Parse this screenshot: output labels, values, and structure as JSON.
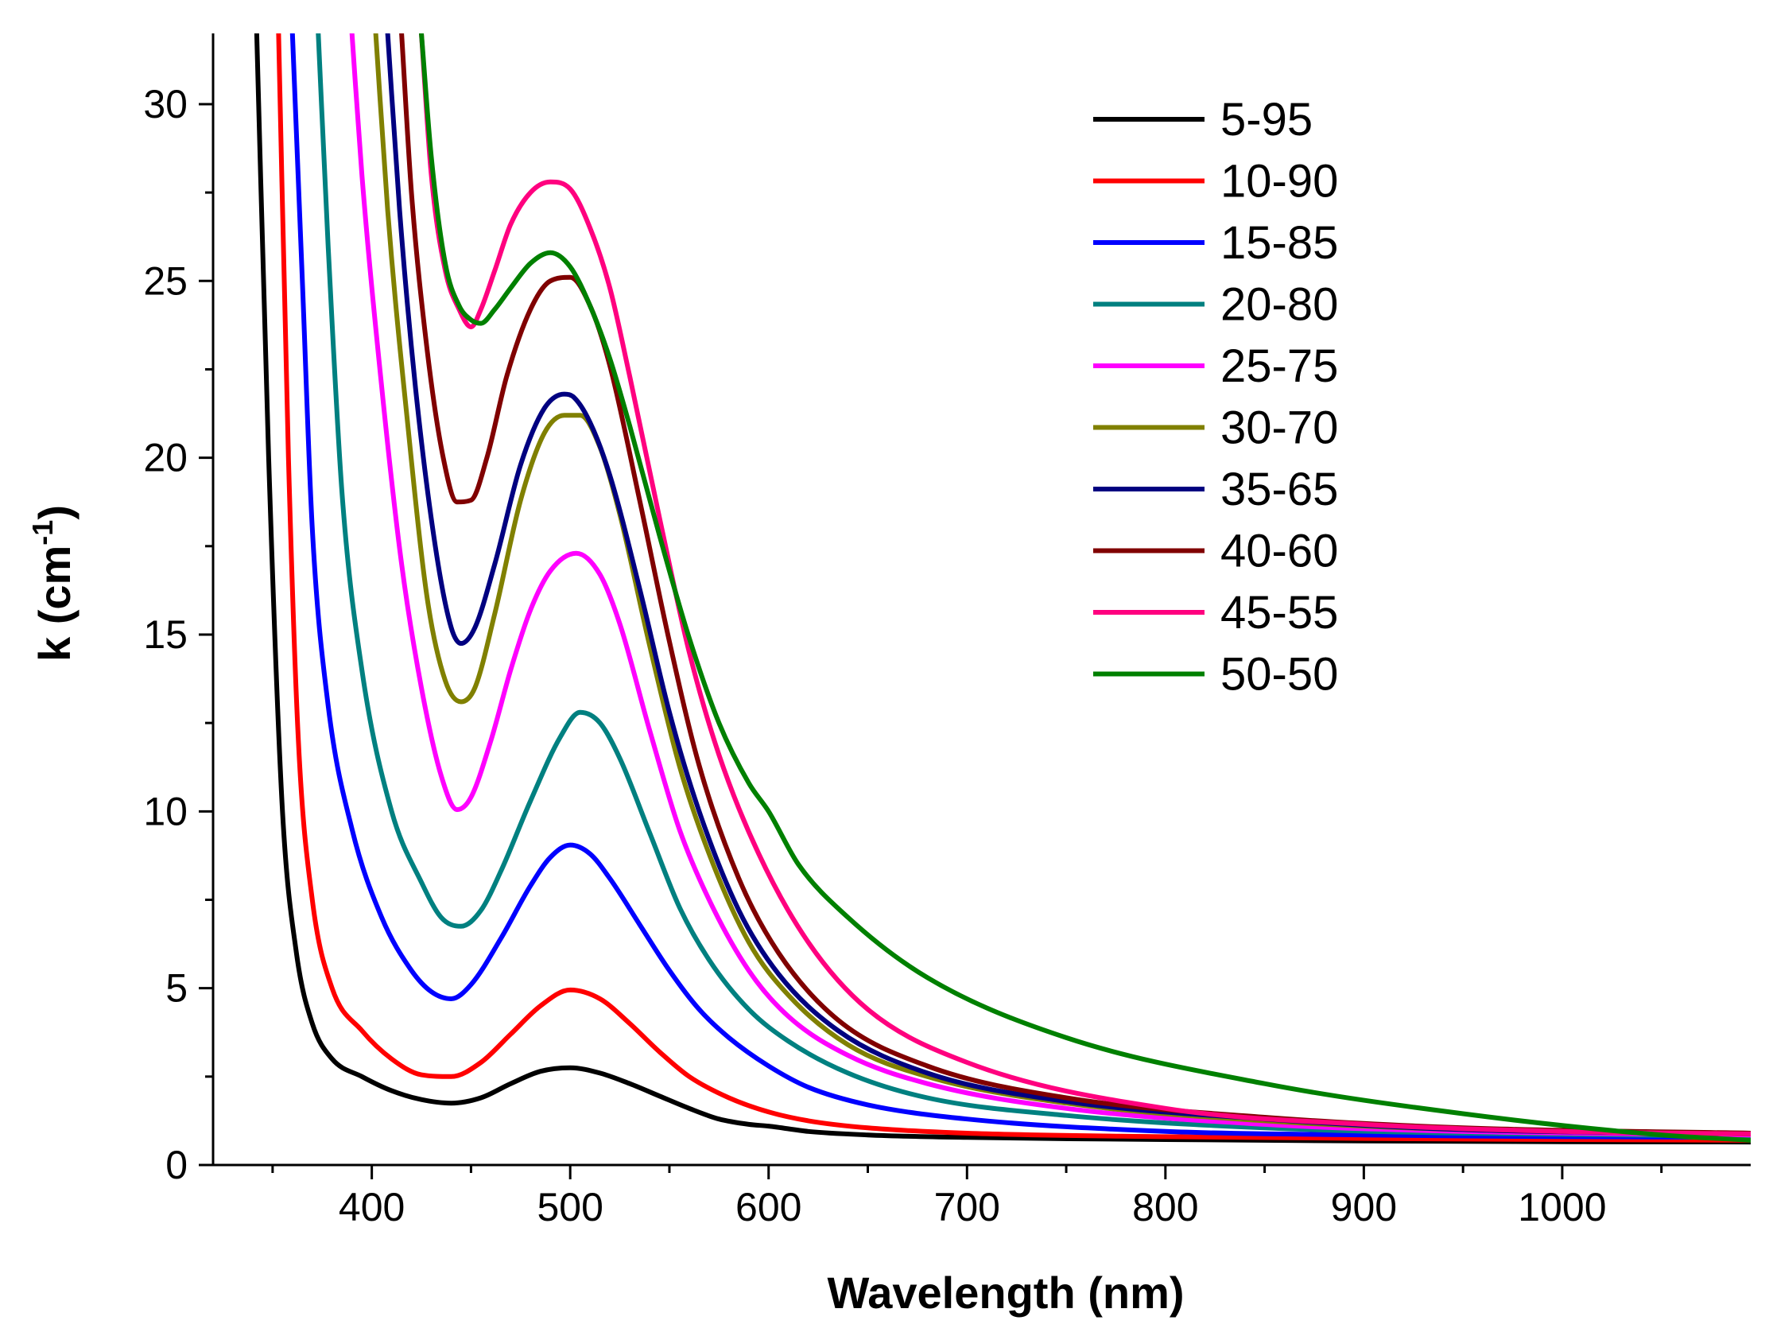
{
  "chart_data": {
    "type": "line",
    "title": "",
    "xlabel": "Wavelength (nm)",
    "ylabel": "k (cm",
    "ylabel_superscript": "-1",
    "ylabel_close": ")",
    "xlim": [
      320,
      1095
    ],
    "ylim": [
      0,
      32
    ],
    "xticks": [
      400,
      500,
      600,
      700,
      800,
      900,
      1000
    ],
    "xtick_labels": [
      "400",
      "500",
      "600",
      "700",
      "800",
      "900",
      "1000"
    ],
    "yticks": [
      0,
      5,
      10,
      15,
      20,
      25,
      30
    ],
    "ytick_labels": [
      "0",
      "5",
      "10",
      "15",
      "20",
      "25",
      "30"
    ],
    "grid": false,
    "legend_position": "top-right",
    "series": [
      {
        "name": "5-95",
        "color": "#000000",
        "x": [
          342,
          348,
          355,
          362,
          370,
          380,
          395,
          410,
          425,
          440,
          455,
          470,
          485,
          500,
          515,
          530,
          545,
          560,
          575,
          590,
          600,
          620,
          650,
          700,
          800,
          900,
          1000,
          1095
        ],
        "y": [
          32,
          20,
          10,
          6,
          4,
          3,
          2.5,
          2.1,
          1.85,
          1.75,
          1.9,
          2.3,
          2.65,
          2.75,
          2.6,
          2.3,
          1.95,
          1.6,
          1.3,
          1.15,
          1.1,
          0.95,
          0.85,
          0.78,
          0.72,
          0.68,
          0.66,
          0.65
        ]
      },
      {
        "name": "10-90",
        "color": "#ff0000",
        "x": [
          353,
          358,
          363,
          370,
          380,
          395,
          410,
          425,
          440,
          455,
          470,
          485,
          500,
          515,
          530,
          545,
          560,
          580,
          600,
          620,
          650,
          700,
          800,
          900,
          1000,
          1095
        ],
        "y": [
          32,
          20,
          12,
          7.5,
          5,
          3.8,
          3.0,
          2.55,
          2.5,
          2.9,
          3.7,
          4.5,
          4.95,
          4.7,
          4.0,
          3.2,
          2.5,
          1.9,
          1.5,
          1.25,
          1.05,
          0.9,
          0.8,
          0.75,
          0.72,
          0.7
        ]
      },
      {
        "name": "15-85",
        "color": "#0000ff",
        "x": [
          360,
          365,
          370,
          378,
          390,
          405,
          420,
          430,
          440,
          450,
          465,
          480,
          490,
          500,
          510,
          520,
          535,
          550,
          565,
          580,
          600,
          620,
          650,
          700,
          800,
          900,
          1000,
          1095
        ],
        "y": [
          32,
          25,
          18,
          13,
          9.5,
          7,
          5.5,
          4.9,
          4.7,
          5.1,
          6.4,
          7.9,
          8.7,
          9.05,
          8.8,
          8.1,
          6.8,
          5.5,
          4.4,
          3.6,
          2.8,
          2.2,
          1.7,
          1.3,
          0.95,
          0.85,
          0.8,
          0.78
        ]
      },
      {
        "name": "20-80",
        "color": "#008080",
        "x": [
          373,
          378,
          385,
          395,
          410,
          425,
          435,
          445,
          455,
          465,
          480,
          495,
          505,
          515,
          525,
          540,
          555,
          570,
          590,
          610,
          640,
          680,
          750,
          850,
          950,
          1095
        ],
        "y": [
          32,
          26,
          19,
          14,
          10,
          8,
          7,
          6.75,
          7.2,
          8.3,
          10.3,
          12.1,
          12.8,
          12.5,
          11.5,
          9.4,
          7.3,
          5.8,
          4.4,
          3.5,
          2.6,
          1.9,
          1.4,
          1.05,
          0.9,
          0.82
        ]
      },
      {
        "name": "25-75",
        "color": "#ff00ff",
        "x": [
          390,
          395,
          405,
          415,
          425,
          435,
          443,
          450,
          460,
          470,
          480,
          490,
          503,
          515,
          525,
          540,
          555,
          570,
          590,
          610,
          640,
          680,
          750,
          850,
          950,
          1095
        ],
        "y": [
          32,
          28,
          22,
          17,
          13.5,
          11,
          10.05,
          10.4,
          12,
          14,
          15.7,
          16.8,
          17.3,
          16.7,
          15.3,
          12.3,
          9.5,
          7.5,
          5.5,
          4.2,
          3.1,
          2.3,
          1.6,
          1.15,
          0.95,
          0.85
        ]
      },
      {
        "name": "30-70",
        "color": "#808000",
        "x": [
          402,
          408,
          418,
          428,
          437,
          445,
          452,
          462,
          475,
          487,
          497,
          505,
          515,
          525,
          540,
          555,
          570,
          590,
          610,
          640,
          680,
          750,
          850,
          950,
          1095
        ],
        "y": [
          32,
          27,
          21,
          16,
          13.7,
          13.1,
          13.5,
          15.6,
          18.8,
          20.7,
          21.2,
          21.2,
          20.3,
          18.4,
          14.7,
          11.3,
          8.8,
          6.3,
          4.8,
          3.4,
          2.5,
          1.75,
          1.25,
          1.0,
          0.9
        ]
      },
      {
        "name": "35-65",
        "color": "#000080",
        "x": [
          408,
          414,
          422,
          432,
          440,
          445,
          452,
          462,
          475,
          487,
          497,
          502,
          510,
          520,
          535,
          550,
          565,
          585,
          605,
          635,
          680,
          750,
          850,
          950,
          1095
        ],
        "y": [
          32,
          27,
          22,
          17.5,
          15.2,
          14.75,
          15.2,
          17,
          19.8,
          21.4,
          21.8,
          21.7,
          21,
          19.5,
          16.3,
          12.8,
          10,
          7.2,
          5.4,
          3.8,
          2.6,
          1.8,
          1.3,
          1.0,
          0.88
        ]
      },
      {
        "name": "40-60",
        "color": "#800000",
        "x": [
          415,
          420,
          428,
          436,
          443,
          450,
          458,
          468,
          480,
          490,
          500,
          510,
          520,
          535,
          550,
          565,
          585,
          605,
          635,
          680,
          750,
          850,
          950,
          1095
        ],
        "y": [
          32,
          27.5,
          23,
          20,
          18.75,
          18.8,
          20,
          22.3,
          24.2,
          25,
          25.1,
          24.3,
          22.6,
          18.8,
          14.8,
          11.3,
          8.1,
          6.0,
          4.1,
          2.8,
          1.9,
          1.35,
          1.05,
          0.9
        ]
      },
      {
        "name": "45-55",
        "color": "#ff007f",
        "x": [
          425,
          430,
          437,
          444,
          450,
          455,
          462,
          470,
          480,
          490,
          500,
          510,
          520,
          530,
          545,
          560,
          575,
          595,
          620,
          650,
          700,
          800,
          900,
          1000,
          1095
        ],
        "y": [
          32,
          28,
          25.3,
          24.2,
          23.7,
          24.2,
          25.3,
          26.6,
          27.5,
          27.8,
          27.6,
          26.5,
          24.8,
          22.3,
          18.3,
          14.5,
          11.6,
          8.8,
          6.3,
          4.4,
          2.9,
          1.6,
          1.15,
          0.95,
          0.88
        ]
      },
      {
        "name": "50-50",
        "color": "#008000",
        "x": [
          425,
          430,
          437,
          444,
          450,
          455,
          462,
          470,
          480,
          490,
          500,
          510,
          520,
          530,
          545,
          560,
          575,
          590,
          600,
          615,
          640,
          680,
          750,
          850,
          950,
          1050,
          1095
        ],
        "y": [
          32,
          28.5,
          25.5,
          24.3,
          23.9,
          23.8,
          24.2,
          24.8,
          25.5,
          25.8,
          25.4,
          24.3,
          22.8,
          20.9,
          17.8,
          14.9,
          12.5,
          10.8,
          10,
          8.5,
          7,
          5.3,
          3.6,
          2.3,
          1.45,
          0.85,
          0.7
        ]
      }
    ]
  }
}
